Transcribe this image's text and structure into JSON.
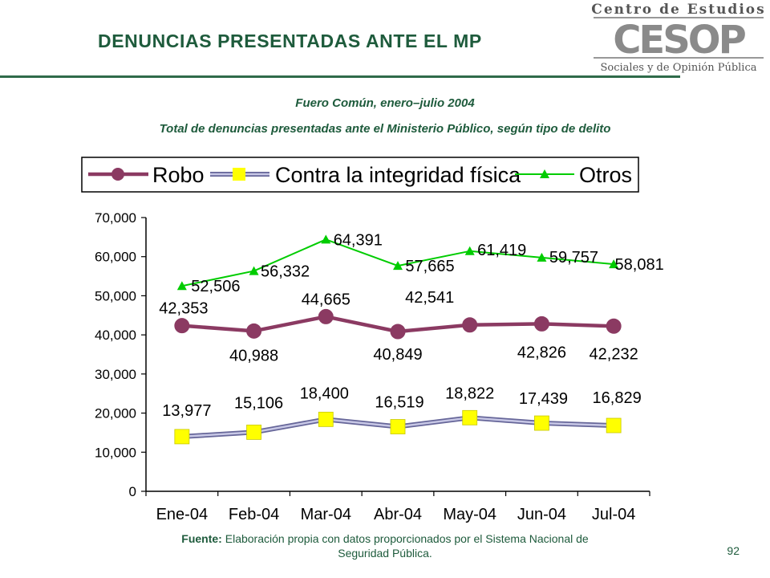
{
  "header": {
    "title": "DENUNCIAS PRESENTADAS ANTE EL MP",
    "subtitle_1": "Fuero Común,  enero–julio 2004",
    "subtitle_2": "Total de denuncias presentadas ante el Ministerio Público, según tipo de delito"
  },
  "logo": {
    "line_top": "Centro de Estudios",
    "big": "CESOP",
    "line_bottom": "Sociales y de Opinión Pública"
  },
  "colors": {
    "title_green": "#1e5b3c",
    "robo": "#8b3a62",
    "integridad_line": "#9999cc",
    "integridad_marker": "#ffff00",
    "otros": "#00cc00"
  },
  "chart_data": {
    "type": "line",
    "categories": [
      "Ene-04",
      "Feb-04",
      "Mar-04",
      "Abr-04",
      "May-04",
      "Jun-04",
      "Jul-04"
    ],
    "ylim": [
      0,
      70000
    ],
    "yticks": [
      0,
      10000,
      20000,
      30000,
      40000,
      50000,
      60000,
      70000
    ],
    "ytick_labels": [
      "0",
      "10,000",
      "20,000",
      "30,000",
      "40,000",
      "50,000",
      "60,000",
      "70,000"
    ],
    "grid": false,
    "legend_position": "top",
    "series": [
      {
        "name": "Robo",
        "values": [
          42353,
          40988,
          44665,
          40849,
          42541,
          42826,
          42232
        ],
        "labels": [
          "42,353",
          "40,988",
          "44,665",
          "40,849",
          "42,541",
          "42,826",
          "42,232"
        ]
      },
      {
        "name": "Contra la integridad física",
        "values": [
          13977,
          15106,
          18400,
          16519,
          18822,
          17439,
          16829
        ],
        "labels": [
          "13,977",
          "15,106",
          "18,400",
          "16,519",
          "18,822",
          "17,439",
          "16,829"
        ]
      },
      {
        "name": "Otros",
        "values": [
          52506,
          56332,
          64391,
          57665,
          61419,
          59757,
          58081
        ],
        "labels": [
          "52,506",
          "56,332",
          "64,391",
          "57,665",
          "61,419",
          "59,757",
          "58,081"
        ]
      }
    ]
  },
  "footer": {
    "source_label": "Fuente:",
    "source_text": "Elaboración propia con datos proporcionados por el Sistema Nacional de Seguridad Pública.",
    "page_number": "92"
  }
}
